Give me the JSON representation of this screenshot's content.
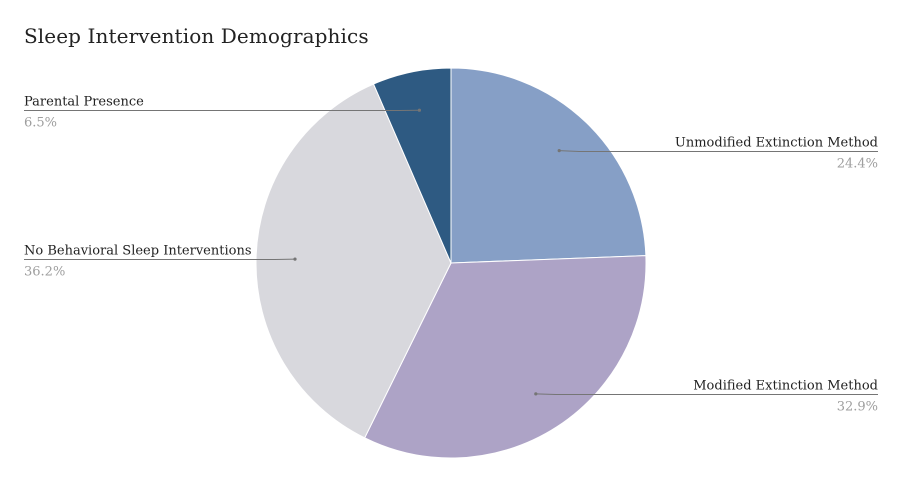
{
  "chart_data": {
    "type": "pie",
    "title": "Sleep Intervention Demographics",
    "start_angle_deg": 0,
    "direction": "clockwise",
    "slices": [
      {
        "label": "Unmodified Extinction Method",
        "value": 24.4,
        "value_label": "24.4%",
        "color": "#869fc6",
        "label_side": "right"
      },
      {
        "label": "Modified Extinction Method",
        "value": 32.9,
        "value_label": "32.9%",
        "color": "#ada3c6",
        "label_side": "right"
      },
      {
        "label": "No Behavioral Sleep Interventions",
        "value": 36.2,
        "value_label": "36.2%",
        "color": "#d8d8dd",
        "label_side": "left"
      },
      {
        "label": "Parental Presence",
        "value": 6.5,
        "value_label": "6.5%",
        "color": "#2e5a82",
        "label_side": "left"
      }
    ],
    "legend": "none"
  }
}
